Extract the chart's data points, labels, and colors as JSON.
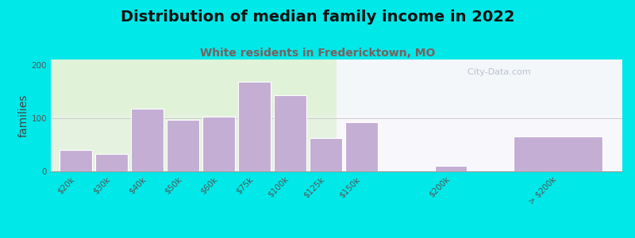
{
  "title": "Distribution of median family income in 2022",
  "subtitle": "White residents in Fredericktown, MO",
  "ylabel": "families",
  "categories": [
    "$20k",
    "$30k",
    "$40k",
    "$50k",
    "$60k",
    "$75k",
    "$100k",
    "$125k",
    "$150k",
    "$200k",
    "> $200k"
  ],
  "values": [
    40,
    33,
    118,
    97,
    103,
    168,
    143,
    63,
    93,
    10,
    65
  ],
  "bar_color": "#c4aed4",
  "bg_outer": "#00e8e8",
  "title_fontsize": 14,
  "subtitle_fontsize": 10,
  "subtitle_color": "#7a6060",
  "ylabel_fontsize": 10,
  "tick_fontsize": 7.5,
  "yticks": [
    0,
    100,
    200
  ],
  "ylim": [
    0,
    210
  ],
  "watermark": "  City-Data.com"
}
